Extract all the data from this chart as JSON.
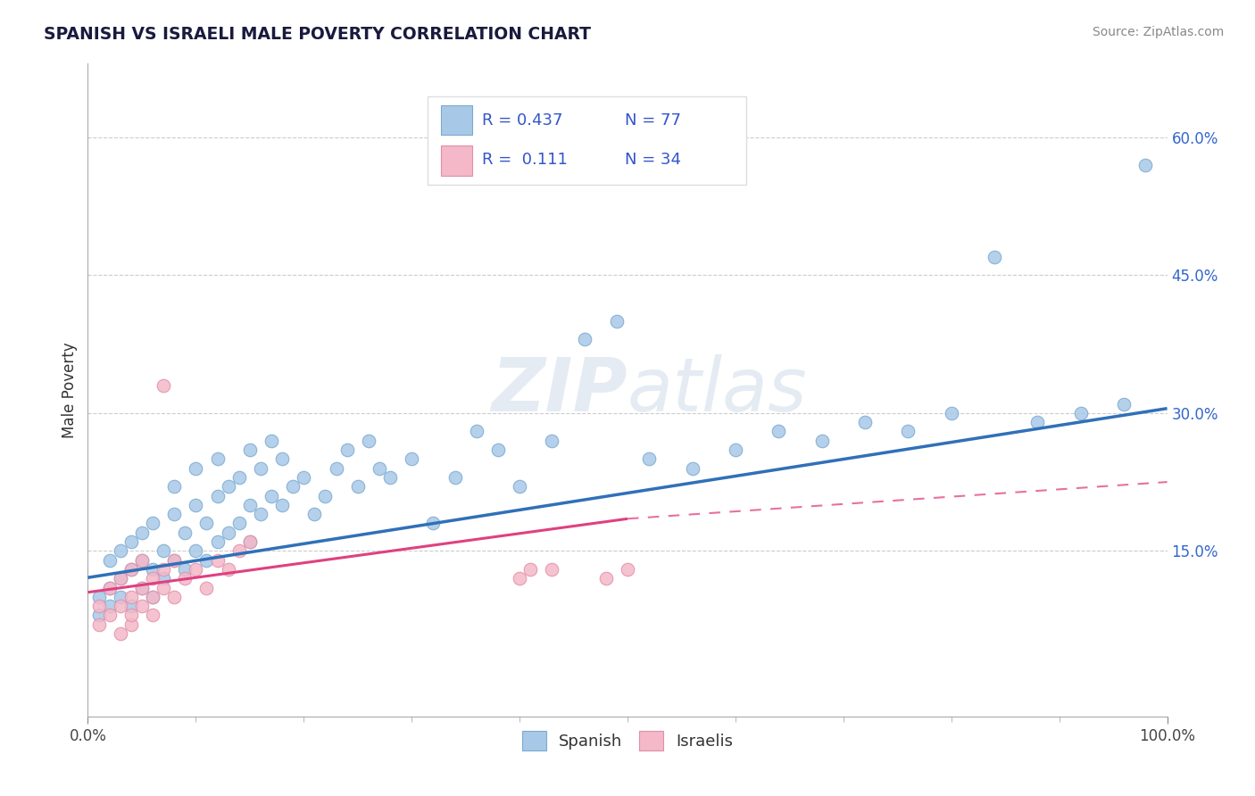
{
  "title": "SPANISH VS ISRAELI MALE POVERTY CORRELATION CHART",
  "source_text": "Source: ZipAtlas.com",
  "ylabel": "Male Poverty",
  "xlim": [
    0.0,
    1.0
  ],
  "ylim": [
    -0.03,
    0.68
  ],
  "x_tick_labels": [
    "0.0%",
    "100.0%"
  ],
  "y_ticks": [
    0.15,
    0.3,
    0.45,
    0.6
  ],
  "y_tick_labels": [
    "15.0%",
    "30.0%",
    "45.0%",
    "60.0%"
  ],
  "spanish_R": 0.437,
  "spanish_N": 77,
  "israeli_R": 0.111,
  "israeli_N": 34,
  "blue_scatter_color": "#a8c8e8",
  "pink_scatter_color": "#f4b8c8",
  "blue_line_color": "#3070b8",
  "pink_line_color": "#e04080",
  "watermark": "ZIPatlas",
  "legend_blue_color": "#a8c8e8",
  "legend_pink_color": "#f4b8c8",
  "spanish_x": [
    0.01,
    0.01,
    0.02,
    0.02,
    0.02,
    0.03,
    0.03,
    0.03,
    0.04,
    0.04,
    0.04,
    0.05,
    0.05,
    0.05,
    0.06,
    0.06,
    0.06,
    0.07,
    0.07,
    0.08,
    0.08,
    0.08,
    0.09,
    0.09,
    0.1,
    0.1,
    0.1,
    0.11,
    0.11,
    0.12,
    0.12,
    0.12,
    0.13,
    0.13,
    0.14,
    0.14,
    0.15,
    0.15,
    0.15,
    0.16,
    0.16,
    0.17,
    0.17,
    0.18,
    0.18,
    0.19,
    0.2,
    0.21,
    0.22,
    0.23,
    0.24,
    0.25,
    0.26,
    0.27,
    0.28,
    0.3,
    0.32,
    0.34,
    0.36,
    0.38,
    0.4,
    0.43,
    0.46,
    0.49,
    0.52,
    0.56,
    0.6,
    0.64,
    0.68,
    0.72,
    0.76,
    0.8,
    0.84,
    0.88,
    0.92,
    0.96,
    0.98
  ],
  "spanish_y": [
    0.1,
    0.08,
    0.11,
    0.09,
    0.14,
    0.1,
    0.12,
    0.15,
    0.09,
    0.13,
    0.16,
    0.11,
    0.14,
    0.17,
    0.1,
    0.13,
    0.18,
    0.12,
    0.15,
    0.14,
    0.19,
    0.22,
    0.13,
    0.17,
    0.15,
    0.2,
    0.24,
    0.14,
    0.18,
    0.16,
    0.21,
    0.25,
    0.17,
    0.22,
    0.18,
    0.23,
    0.16,
    0.2,
    0.26,
    0.19,
    0.24,
    0.21,
    0.27,
    0.2,
    0.25,
    0.22,
    0.23,
    0.19,
    0.21,
    0.24,
    0.26,
    0.22,
    0.27,
    0.24,
    0.23,
    0.25,
    0.18,
    0.23,
    0.28,
    0.26,
    0.22,
    0.27,
    0.38,
    0.4,
    0.25,
    0.24,
    0.26,
    0.28,
    0.27,
    0.29,
    0.28,
    0.3,
    0.47,
    0.29,
    0.3,
    0.31,
    0.57
  ],
  "israeli_x": [
    0.01,
    0.01,
    0.02,
    0.02,
    0.03,
    0.03,
    0.03,
    0.04,
    0.04,
    0.04,
    0.04,
    0.05,
    0.05,
    0.05,
    0.06,
    0.06,
    0.06,
    0.07,
    0.07,
    0.07,
    0.08,
    0.08,
    0.09,
    0.1,
    0.11,
    0.12,
    0.13,
    0.14,
    0.15,
    0.4,
    0.41,
    0.43,
    0.48,
    0.5
  ],
  "israeli_y": [
    0.09,
    0.07,
    0.08,
    0.11,
    0.06,
    0.09,
    0.12,
    0.07,
    0.1,
    0.13,
    0.08,
    0.09,
    0.11,
    0.14,
    0.1,
    0.12,
    0.08,
    0.11,
    0.13,
    0.33,
    0.1,
    0.14,
    0.12,
    0.13,
    0.11,
    0.14,
    0.13,
    0.15,
    0.16,
    0.12,
    0.13,
    0.13,
    0.12,
    0.13
  ],
  "spanish_line_x0": 0.0,
  "spanish_line_x1": 1.0,
  "spanish_line_y0": 0.121,
  "spanish_line_y1": 0.305,
  "israeli_line_x0": 0.0,
  "israeli_line_x1_solid": 0.5,
  "israeli_line_x1_dash": 1.0,
  "israeli_line_y0": 0.105,
  "israeli_line_y1_solid": 0.185,
  "israeli_line_y1_dash": 0.225
}
